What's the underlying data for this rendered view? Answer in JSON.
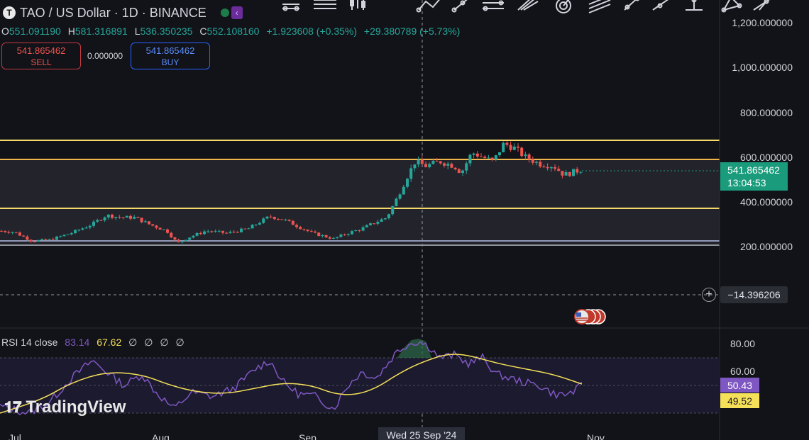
{
  "header": {
    "symbol_logo": "T",
    "title": "TAO / US Dollar · 1D · BINANCE"
  },
  "ohlc": {
    "o_label": "O",
    "o": "551.091190",
    "h_label": "H",
    "h": "581.316891",
    "l_label": "L",
    "l": "536.350235",
    "c_label": "C",
    "c": "552.108160",
    "change": "+1.923608 (+0.35%)",
    "change2": "+29.380789 (+5.73%)"
  },
  "trade": {
    "sell_price": "541.865462",
    "sell_label": "SELL",
    "spread": "0.000000",
    "buy_price": "541.865462",
    "buy_label": "BUY"
  },
  "price_axis": [
    "1,200.000000",
    "1,000.000000",
    "800.000000",
    "600.000000",
    "400.000000",
    "200.000000"
  ],
  "current_price": {
    "price": "541.865462",
    "countdown": "13:04:53"
  },
  "cursor_value": "−14.396206",
  "rsi": {
    "title": "RSI",
    "length": "14",
    "source": "close",
    "rsi_value": "83.14",
    "ma_value": "67.62",
    "empty_values": [
      "∅",
      "∅",
      "∅",
      "∅"
    ],
    "axis": [
      "80.00",
      "60.00"
    ],
    "tag_rsi": "50.43",
    "tag_ma": "49.52"
  },
  "time_axis": {
    "labels": [
      "Jul",
      "Aug",
      "Sep",
      "Nov"
    ],
    "crosshair_date": "Wed 25 Sep '24"
  },
  "watermark": "TradingView",
  "colors": {
    "background": "#121318",
    "up": "#26a69a",
    "down": "#ef5350",
    "horizontal_lines": "#f5d96b",
    "range_fill": "#2a2c33",
    "rsi_line": "#7e57c2",
    "rsi_ma": "#f5e05a",
    "current_price_tag": "#1a9c7c"
  },
  "toolbar_icons": [
    "trend-line-icon",
    "horizontal-lines-icon",
    "long-position-icon",
    "brush-icon",
    "path-icon",
    "projection-icon",
    "pitchfork-icon",
    "measure-icon",
    "fib-icon",
    "gann-icon",
    "arrow-icon",
    "anchor-icon",
    "shape-icon",
    "extended-line-icon"
  ]
}
